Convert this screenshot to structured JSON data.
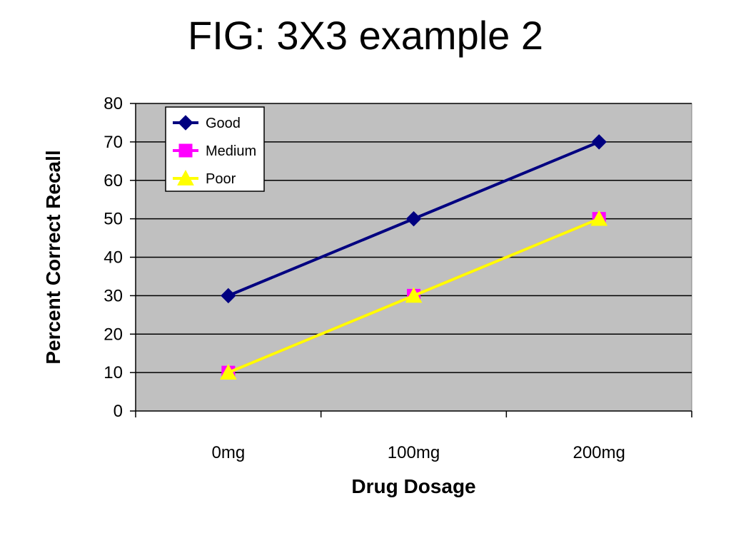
{
  "slide": {
    "title": "FIG: 3X3 example 2"
  },
  "chart_data": {
    "type": "line",
    "title": "",
    "xlabel": "Drug Dosage",
    "ylabel": "Percent Correct Recall",
    "categories": [
      "0mg",
      "100mg",
      "200mg"
    ],
    "ylim": [
      0,
      80
    ],
    "yticks": [
      0,
      10,
      20,
      30,
      40,
      50,
      60,
      70,
      80
    ],
    "grid": true,
    "plot_background": "#c0c0c0",
    "legend_position": "top-left",
    "series": [
      {
        "name": "Good",
        "values": [
          30,
          50,
          70
        ],
        "color": "#000080",
        "marker": "diamond"
      },
      {
        "name": "Medium",
        "values": [
          10,
          30,
          50
        ],
        "color": "#ff00ff",
        "marker": "square"
      },
      {
        "name": "Poor",
        "values": [
          10,
          30,
          50
        ],
        "color": "#ffff00",
        "marker": "triangle"
      }
    ]
  }
}
